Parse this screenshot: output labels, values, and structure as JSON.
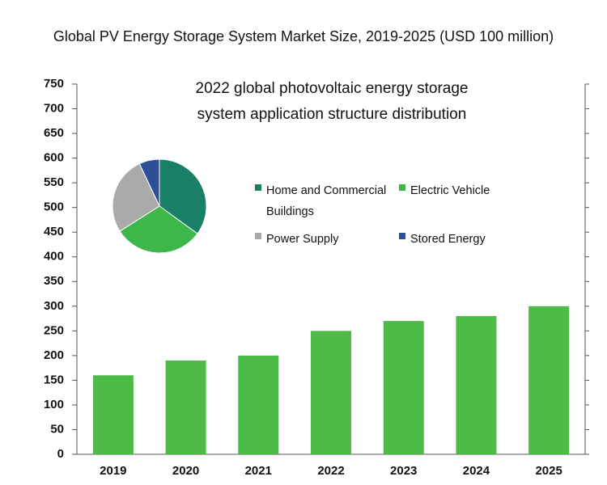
{
  "chart_data": [
    {
      "type": "bar",
      "title": "Global PV Energy Storage System Market Size, 2019-2025 (USD 100 million)",
      "categories": [
        "2019",
        "2020",
        "2021",
        "2022",
        "2023",
        "2024",
        "2025"
      ],
      "values": [
        160,
        190,
        200,
        250,
        270,
        280,
        300
      ],
      "color": "#4cbb47",
      "ylim": [
        0,
        750
      ],
      "yticks": [
        0,
        50,
        100,
        150,
        200,
        250,
        300,
        350,
        400,
        450,
        500,
        550,
        600,
        650,
        700,
        750
      ]
    },
    {
      "type": "pie",
      "title": "2022 global photovoltaic energy storage system application structure distribution",
      "categories": [
        "Home and Commercial Buildings",
        "Electric Vehicle",
        "Power Supply",
        "Stored Energy"
      ],
      "values": [
        35,
        31,
        27,
        7
      ],
      "colors": [
        "#1a7f67",
        "#3db64a",
        "#aaaaaa",
        "#2c4f96"
      ]
    }
  ]
}
